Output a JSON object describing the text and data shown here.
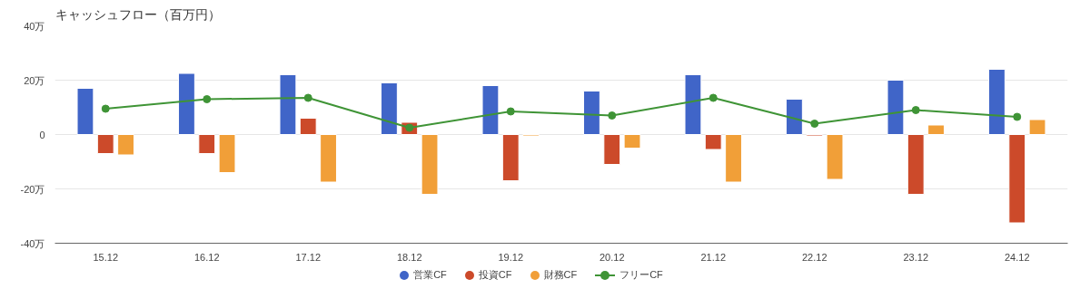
{
  "chart_data": {
    "type": "bar",
    "title": "キャッシュフロー（百万円）",
    "categories": [
      "15.12",
      "16.12",
      "17.12",
      "18.12",
      "19.12",
      "20.12",
      "21.12",
      "22.12",
      "23.12",
      "24.12"
    ],
    "series": [
      {
        "name": "営業CF",
        "color": "#4065c8",
        "values": [
          17,
          22.5,
          22,
          19,
          18,
          16,
          22,
          13,
          20,
          24
        ]
      },
      {
        "name": "投資CF",
        "color": "#cc4a2a",
        "values": [
          -7,
          -7,
          6,
          4.5,
          -17,
          -11,
          -5.5,
          -0.5,
          -22,
          -32.5
        ]
      },
      {
        "name": "財務CF",
        "color": "#f19f38",
        "values": [
          -7.5,
          -14,
          -17.5,
          -22,
          -0.5,
          -5,
          -17.5,
          -16.5,
          3.5,
          5.5
        ]
      },
      {
        "name": "フリーCF",
        "type": "line",
        "color": "#3f9436",
        "values": [
          9.5,
          13,
          13.5,
          2.5,
          8.5,
          7,
          13.5,
          4,
          9,
          6.5
        ]
      }
    ],
    "ylim": [
      -40,
      40
    ],
    "yticks": [
      {
        "value": -40,
        "label": "-40万"
      },
      {
        "value": -20,
        "label": "-20万"
      },
      {
        "value": 0,
        "label": "0"
      },
      {
        "value": 20,
        "label": "20万"
      },
      {
        "value": 40,
        "label": "40万"
      }
    ],
    "grid": "y",
    "legend": "bottom",
    "marker": "circle"
  }
}
